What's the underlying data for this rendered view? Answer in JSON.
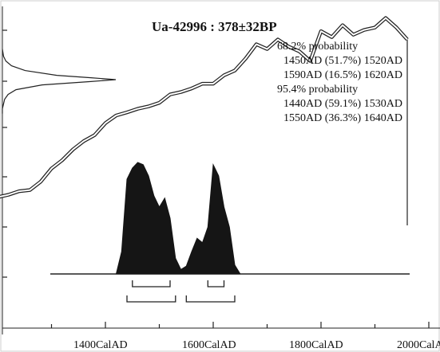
{
  "chart_data": {
    "type": "area",
    "title": "Ua-42996 : 378±32BP",
    "xlabel": "",
    "ylabel": "",
    "x_ticks": [
      "1400CalAD",
      "1600CalAD",
      "1800CalAD",
      "2000CalAD"
    ],
    "x_tick_values": [
      1400,
      1600,
      1800,
      2000
    ],
    "xlim": [
      1200,
      2060
    ],
    "annotations": [
      "68.2% probability",
      "1450AD (51.7%) 1520AD",
      "1590AD (16.5%) 1620AD",
      "95.4% probability",
      "1440AD (59.1%) 1530AD",
      "1550AD (36.3%) 1640AD"
    ],
    "calibration_curve": {
      "x": [
        1200,
        1220,
        1240,
        1260,
        1280,
        1300,
        1320,
        1340,
        1360,
        1380,
        1400,
        1420,
        1440,
        1460,
        1480,
        1500,
        1520,
        1540,
        1560,
        1580,
        1600,
        1620,
        1640,
        1660,
        1680,
        1700,
        1720,
        1740,
        1760,
        1780,
        1800,
        1820,
        1840,
        1860,
        1880,
        1900,
        1920,
        1940,
        1960
      ],
      "y": [
        870,
        860,
        845,
        840,
        805,
        750,
        715,
        670,
        635,
        610,
        560,
        528,
        515,
        500,
        490,
        475,
        440,
        430,
        415,
        395,
        395,
        360,
        340,
        290,
        230,
        250,
        210,
        240,
        260,
        300,
        175,
        200,
        150,
        190,
        170,
        160,
        120,
        160,
        210
      ]
    },
    "measured_date_distribution": {
      "y_bp": [
        250,
        280,
        300,
        320,
        340,
        360,
        370,
        378,
        386,
        400,
        420,
        440,
        460,
        480,
        500,
        520
      ],
      "density": [
        0.0,
        0.01,
        0.03,
        0.08,
        0.2,
        0.48,
        0.78,
        1.0,
        0.78,
        0.35,
        0.12,
        0.05,
        0.02,
        0.01,
        0.0,
        0.0
      ]
    },
    "calibrated_distribution": {
      "x": [
        1420,
        1430,
        1440,
        1450,
        1460,
        1470,
        1480,
        1490,
        1500,
        1510,
        1520,
        1530,
        1540,
        1550,
        1560,
        1570,
        1580,
        1590,
        1600,
        1610,
        1620,
        1630,
        1640,
        1650
      ],
      "density": [
        0.0,
        0.2,
        0.85,
        0.95,
        1.0,
        0.98,
        0.88,
        0.7,
        0.6,
        0.68,
        0.5,
        0.14,
        0.04,
        0.07,
        0.2,
        0.32,
        0.28,
        0.42,
        0.98,
        0.88,
        0.6,
        0.42,
        0.08,
        0.0
      ]
    },
    "ranges_68": [
      [
        1450,
        1520
      ],
      [
        1590,
        1620
      ]
    ],
    "ranges_95": [
      [
        1440,
        1530
      ],
      [
        1550,
        1640
      ]
    ]
  }
}
